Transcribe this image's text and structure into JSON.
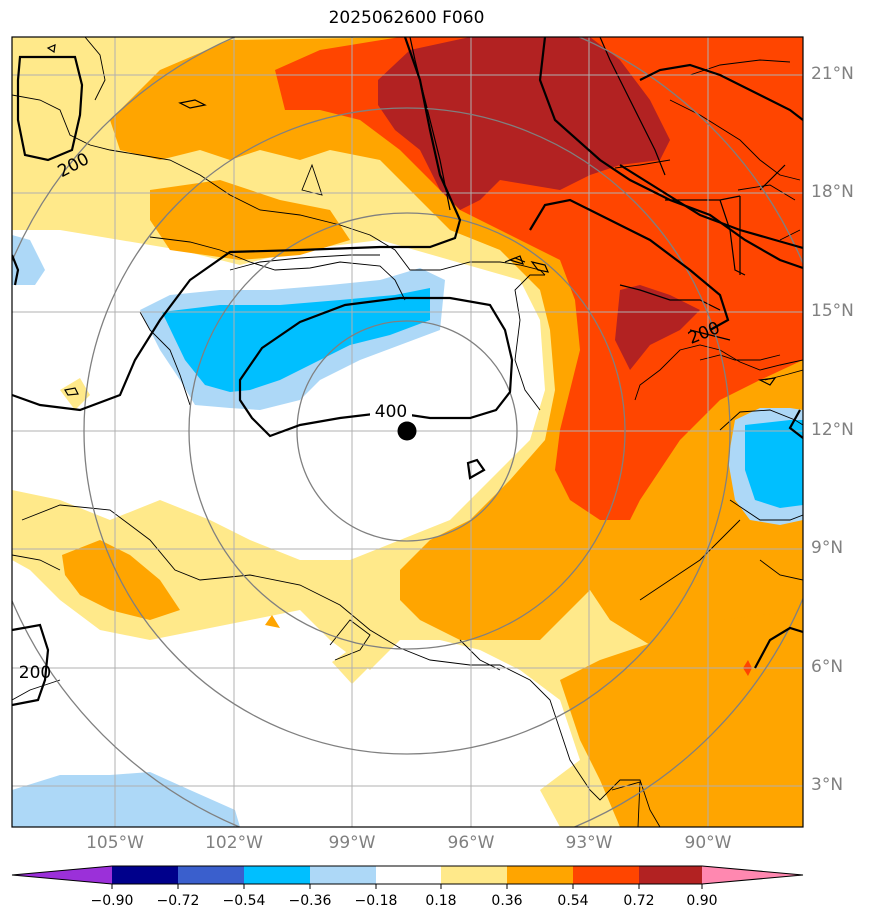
{
  "title": "2025062600 F060",
  "map": {
    "latitude_labels": [
      "21°N",
      "18°N",
      "15°N",
      "12°N",
      "9°N",
      "6°N",
      "3°N"
    ],
    "longitude_labels": [
      "105°W",
      "102°W",
      "99°W",
      "96°W",
      "93°W",
      "90°W"
    ],
    "contour_labels": [
      {
        "text": "200",
        "id": "nw"
      },
      {
        "text": "400",
        "id": "center"
      },
      {
        "text": "200",
        "id": "east"
      },
      {
        "text": "200",
        "id": "sw"
      }
    ],
    "center_marker": {
      "lat": 12.0,
      "lon": -97.5
    }
  },
  "colorbar": {
    "boundaries": [
      "−0.90",
      "−0.72",
      "−0.54",
      "−0.36",
      "−0.18",
      "0.18",
      "0.36",
      "0.54",
      "0.72",
      "0.90"
    ],
    "colors": [
      "#9b30d9",
      "#00008b",
      "#3a5fcd",
      "#00bfff",
      "#add8f7",
      "#ffffff",
      "#ffe98a",
      "#ffa500",
      "#ff4500",
      "#b22222",
      "#ff88b0"
    ]
  },
  "colors": {
    "light_blue": "#add8f7",
    "blue": "#00bfff",
    "yellow": "#ffe98a",
    "orange": "#ffa500",
    "red": "#ff4500",
    "dark_red": "#b22222"
  }
}
